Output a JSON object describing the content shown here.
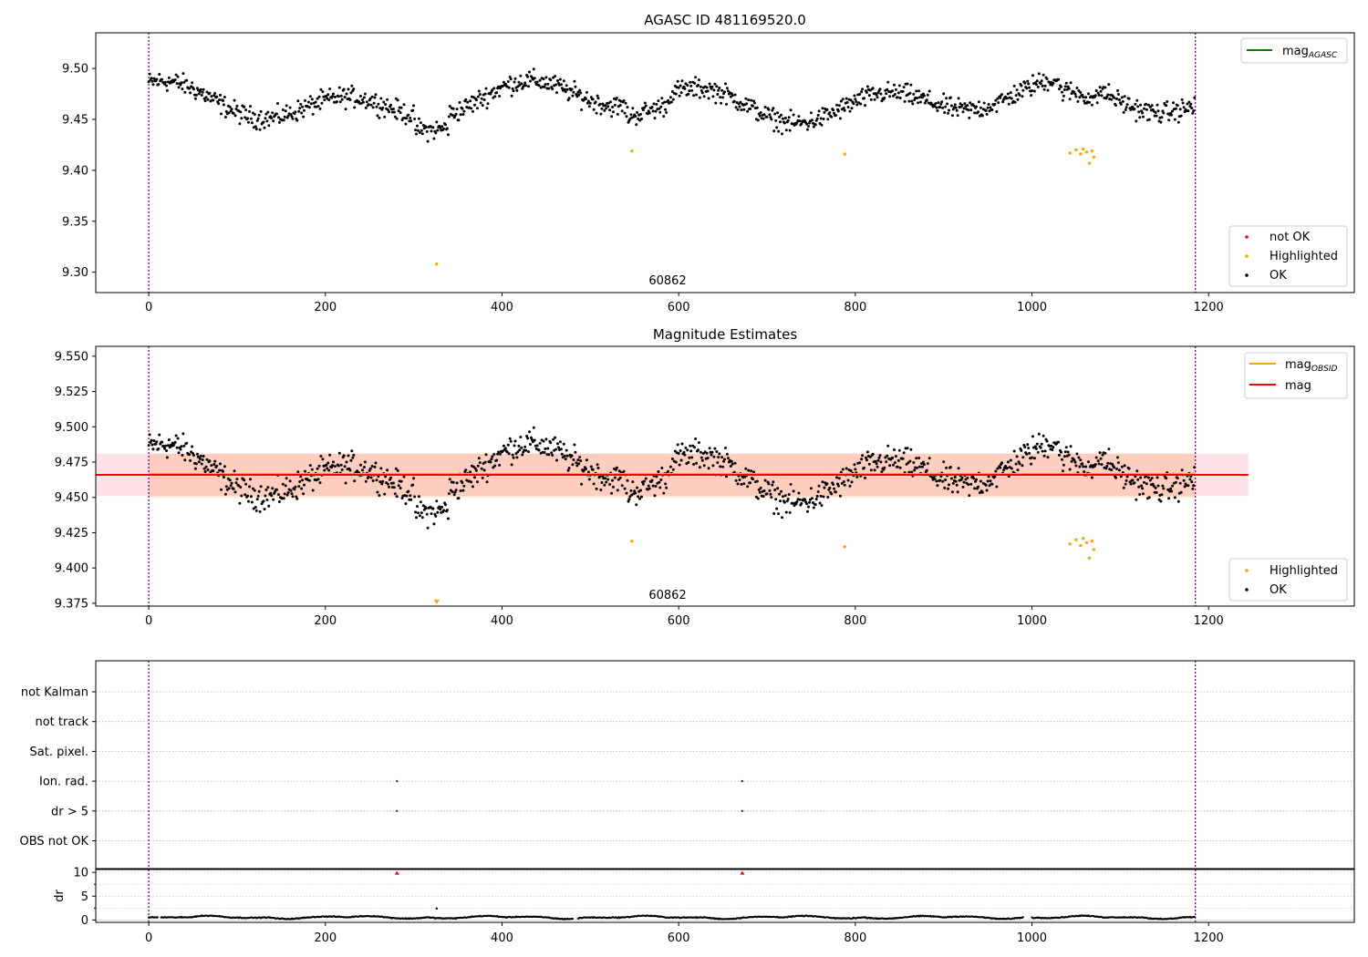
{
  "chart_data": [
    {
      "type": "scatter",
      "title": "AGASC ID 481169520.0",
      "xlabel": "",
      "ylabel": "",
      "xlim": [
        -60,
        1365
      ],
      "ylim": [
        9.28,
        9.535
      ],
      "xticks": [
        0,
        200,
        400,
        600,
        800,
        1000,
        1200
      ],
      "yticks": [
        9.3,
        9.35,
        9.4,
        9.45,
        9.5
      ],
      "grid": false,
      "vlines": [
        0,
        1185
      ],
      "annotation": "60862",
      "legend_lines": [
        {
          "label_main": "mag",
          "label_sub": "AGASC",
          "color": "#008000"
        }
      ],
      "legend_points": [
        {
          "label": "not OK",
          "color": "#ff0000"
        },
        {
          "label": "Highlighted",
          "color": "#ffa500"
        },
        {
          "label": "OK",
          "color": "#000000"
        }
      ],
      "series": [
        {
          "name": "OK",
          "color": "#000000",
          "x_range": [
            0,
            1185
          ],
          "count": 1185,
          "baseline": 9.468,
          "noise": 0.012
        },
        {
          "name": "Highlighted",
          "color": "#ffa500",
          "x": [
            326,
            547,
            788,
            1043,
            1050,
            1055,
            1058,
            1062,
            1065,
            1068,
            1070
          ],
          "y": [
            9.308,
            9.419,
            9.416,
            9.417,
            9.42,
            9.416,
            9.421,
            9.418,
            9.407,
            9.419,
            9.413
          ]
        }
      ]
    },
    {
      "type": "scatter",
      "title": "Magnitude Estimates",
      "xlabel": "",
      "ylabel": "",
      "xlim": [
        -60,
        1365
      ],
      "ylim": [
        9.373,
        9.557
      ],
      "xticks": [
        0,
        200,
        400,
        600,
        800,
        1000,
        1200
      ],
      "yticks": [
        9.375,
        9.4,
        9.425,
        9.45,
        9.475,
        9.5,
        9.525,
        9.55
      ],
      "grid": false,
      "vlines": [
        0,
        1185
      ],
      "annotation": "60862",
      "mag_obsid": {
        "value": 9.466,
        "lower": 9.45,
        "upper": 9.481,
        "color": "#ffa500"
      },
      "mag": {
        "value": 9.466,
        "lower": 9.451,
        "upper": 9.481,
        "color": "#ff0000",
        "x_range": [
          -60,
          1245
        ]
      },
      "legend_lines": [
        {
          "label_main": "mag",
          "label_sub": "OBSID",
          "color": "#ffa500"
        },
        {
          "label_main": "mag",
          "label_sub": "",
          "color": "#ff0000"
        }
      ],
      "legend_points": [
        {
          "label": "Highlighted",
          "color": "#ffa500"
        },
        {
          "label": "OK",
          "color": "#000000"
        }
      ],
      "series": [
        {
          "name": "OK",
          "color": "#000000",
          "x_range": [
            0,
            1185
          ],
          "count": 1185,
          "baseline": 9.468,
          "noise": 0.012
        },
        {
          "name": "Highlighted",
          "color": "#ffa500",
          "x": [
            547,
            788,
            1043,
            1050,
            1055,
            1058,
            1062,
            1065,
            1068,
            1070
          ],
          "y": [
            9.419,
            9.415,
            9.417,
            9.42,
            9.416,
            9.421,
            9.418,
            9.407,
            9.419,
            9.413
          ]
        },
        {
          "name": "out of range",
          "color": "#ffa500",
          "marker": "triangle-down",
          "x": [
            326
          ],
          "y": [
            9.376
          ]
        }
      ]
    },
    {
      "type": "scatter",
      "title": "",
      "xlabel": "",
      "ylabel": "",
      "xlim": [
        -60,
        1365
      ],
      "categories": [
        "not Kalman",
        "not track",
        "Sat. pixel.",
        "Ion. rad.",
        "dr > 5",
        "OBS not OK"
      ],
      "grid": true,
      "vlines": [
        0,
        1185
      ],
      "flags": [
        {
          "category": "Ion. rad.",
          "x": [
            281,
            672
          ]
        },
        {
          "category": "dr > 5",
          "x": [
            281,
            672
          ]
        }
      ]
    },
    {
      "type": "scatter",
      "title": "",
      "xlabel": "",
      "ylabel": "dr",
      "xlim": [
        -60,
        1365
      ],
      "ylim": [
        -0.5,
        10.6
      ],
      "xticks": [
        0,
        200,
        400,
        600,
        800,
        1000,
        1200
      ],
      "yticks": [
        0,
        5,
        10
      ],
      "grid": true,
      "vlines": [
        0,
        1185
      ],
      "outliers": {
        "color": "#ff0000",
        "marker": "triangle-up",
        "x": [
          281,
          672
        ],
        "y": [
          9.9,
          9.9
        ]
      },
      "series": [
        {
          "name": "dr",
          "color": "#000000",
          "x_range": [
            0,
            1185
          ],
          "count": 1185,
          "baseline": 0.7,
          "noise": 0.35
        }
      ]
    }
  ]
}
